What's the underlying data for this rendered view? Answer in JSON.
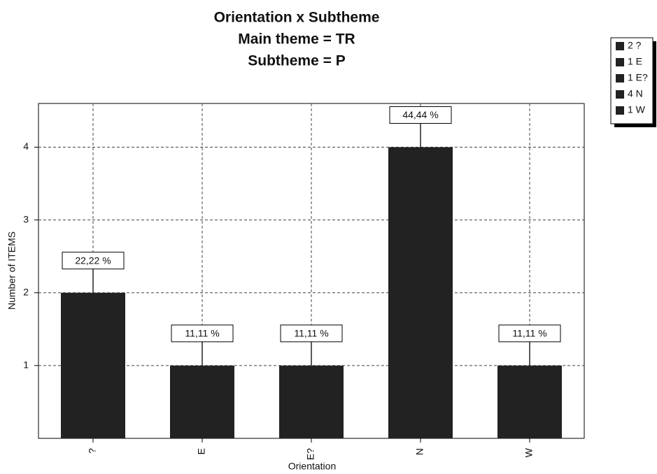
{
  "chart_data": {
    "type": "bar",
    "title": [
      "Orientation  x  Subtheme",
      "Main theme = TR",
      "Subtheme = P"
    ],
    "x_label": "Orientation",
    "y_label": "Number  of  ITEMS",
    "categories": [
      "?",
      "E",
      "E?",
      "N",
      "W"
    ],
    "values": [
      2,
      1,
      1,
      4,
      1
    ],
    "annotations": [
      "22,22 %",
      "11,11 %",
      "11,11 %",
      "44,44 %",
      "11,11 %"
    ],
    "legend": [
      "2 ?",
      "1 E",
      "1 E?",
      "4 N",
      "1 W"
    ],
    "color": "#222222",
    "ylim": [
      0,
      4.6
    ],
    "yticks": [
      1,
      2,
      3,
      4
    ],
    "grid": true
  }
}
